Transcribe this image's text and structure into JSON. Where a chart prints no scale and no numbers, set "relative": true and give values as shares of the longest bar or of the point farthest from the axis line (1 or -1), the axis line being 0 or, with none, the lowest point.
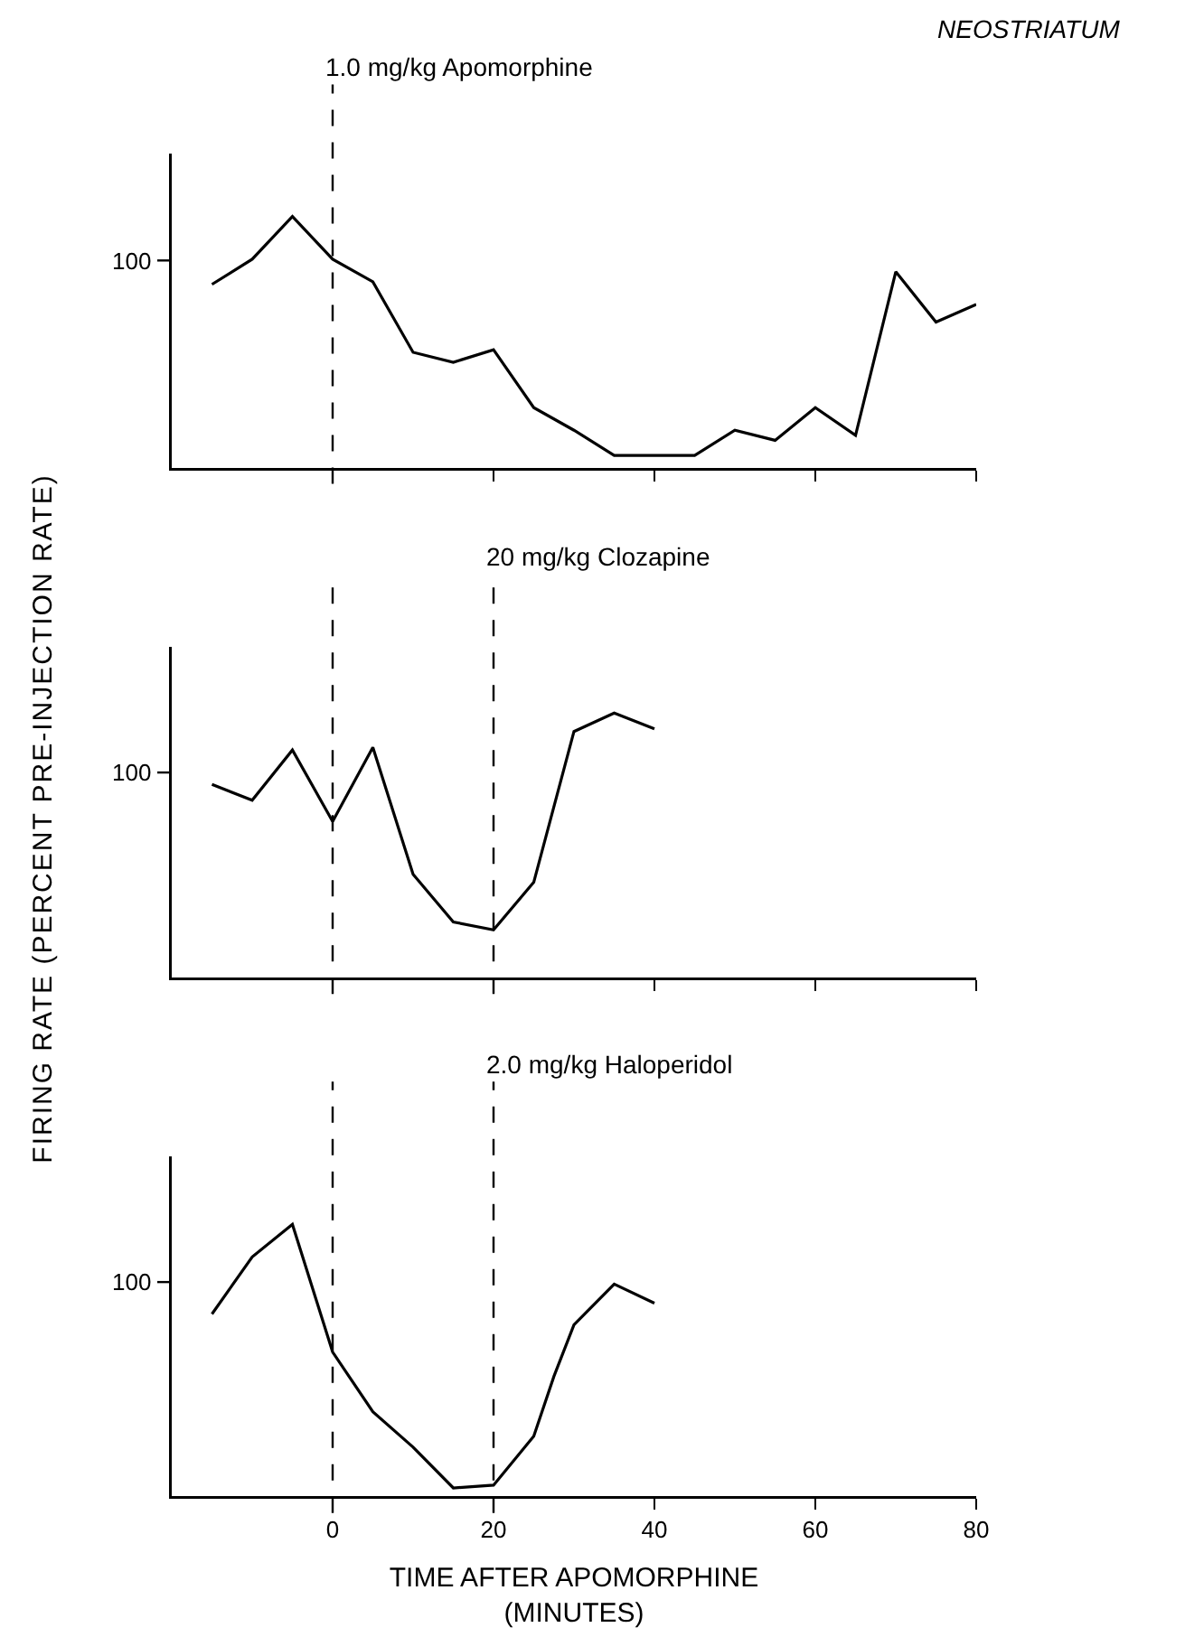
{
  "chart_data": [
    {
      "type": "line",
      "title": "NEOSTRIATUM",
      "relative": true,
      "x": [
        -15,
        -10,
        -5,
        0,
        5,
        10,
        15,
        20,
        25,
        30,
        35,
        40,
        45,
        50,
        55,
        60,
        65,
        70,
        75,
        80
      ],
      "series": [
        {
          "color": "#000000",
          "values": [
            0.73,
            0.83,
            1,
            0.83,
            0.74,
            0.46,
            0.42,
            0.47,
            0.24,
            0.15,
            0.05,
            0.05,
            0.05,
            0.15,
            0.11,
            0.24,
            0.13,
            0.78,
            0.58,
            0.65
          ]
        }
      ],
      "xlim": [
        -20,
        80
      ],
      "xticks": [
        {
          "value": 0,
          "label": null
        },
        {
          "value": 20,
          "label": null
        },
        {
          "value": 40,
          "label": null
        },
        {
          "value": 60,
          "label": null
        },
        {
          "value": 80,
          "label": null
        }
      ],
      "tick_labels": false,
      "annotations": [
        "100"
      ],
      "ref_lines": [
        {
          "axis": "x",
          "value": 0,
          "label": "1.0 mg/kg Apomorphine",
          "line_style": "dashed"
        }
      ]
    },
    {
      "type": "line",
      "ylabel": "FIRING RATE (PERCENT PRE-INJECTION RATE)",
      "relative": true,
      "x": [
        -15,
        -10,
        -5,
        0,
        5,
        10,
        15,
        20,
        25,
        30,
        35,
        40
      ],
      "series": [
        {
          "color": "#000000",
          "values": [
            0.73,
            0.67,
            0.86,
            0.59,
            0.87,
            0.39,
            0.21,
            0.18,
            0.36,
            0.93,
            1,
            0.94
          ]
        }
      ],
      "xlim": [
        -20,
        80
      ],
      "xticks": [
        {
          "value": 0,
          "label": null
        },
        {
          "value": 20,
          "label": null
        },
        {
          "value": 40,
          "label": null
        },
        {
          "value": 60,
          "label": null
        },
        {
          "value": 80,
          "label": null
        }
      ],
      "tick_labels": false,
      "annotations": [
        "100"
      ],
      "ref_lines": [
        {
          "axis": "x",
          "value": 0,
          "label": null,
          "line_style": "dashed"
        },
        {
          "axis": "x",
          "value": 20,
          "label": "20 mg/kg Clozapine",
          "line_style": "dashed"
        }
      ]
    },
    {
      "type": "line",
      "xlabel": "TIME AFTER APOMORPHINE\n(MINUTES)",
      "relative": true,
      "x": [
        -15,
        -10,
        -5,
        0,
        5,
        10,
        15,
        20,
        25,
        27.5,
        30,
        35,
        40
      ],
      "series": [
        {
          "color": "#000000",
          "values": [
            0.67,
            0.88,
            1,
            0.53,
            0.31,
            0.18,
            0.03,
            0.04,
            0.22,
            0.44,
            0.63,
            0.78,
            0.71
          ]
        }
      ],
      "xlim": [
        -20,
        80
      ],
      "xticks": [
        0,
        20,
        40,
        60,
        80
      ],
      "tick_labels": "x",
      "annotations": [
        "100"
      ],
      "ref_lines": [
        {
          "axis": "x",
          "value": 0,
          "label": null,
          "line_style": "dashed"
        },
        {
          "axis": "x",
          "value": 20,
          "label": "2.0 mg/kg Haloperidol",
          "line_style": "dashed"
        }
      ]
    }
  ]
}
